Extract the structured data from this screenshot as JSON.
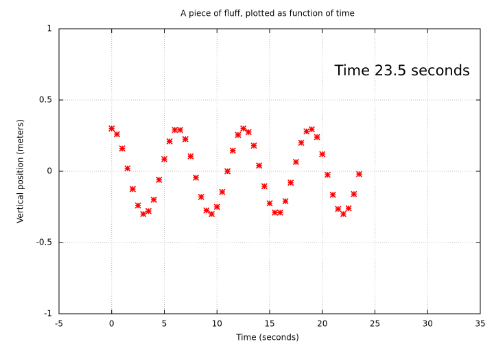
{
  "chart_data": {
    "type": "scatter",
    "title": "A piece of fluff, plotted as function of time",
    "xlabel": "Time (seconds)",
    "ylabel": "Vertical position (meters)",
    "annotation": "Time 23.5 seconds",
    "color": "#ff0000",
    "x": [
      0,
      0.5,
      1,
      1.5,
      2,
      2.5,
      3,
      3.5,
      4,
      4.5,
      5,
      5.5,
      6,
      6.5,
      7,
      7.5,
      8,
      8.5,
      9,
      9.5,
      10,
      10.5,
      11,
      11.5,
      12,
      12.5,
      13,
      13.5,
      14,
      14.5,
      15,
      15.5,
      16,
      16.5,
      17,
      17.5,
      18,
      18.5,
      19,
      19.5,
      20,
      20.5,
      21,
      21.5,
      22,
      22.5,
      23,
      23.5
    ],
    "values": [
      0.3,
      0.26,
      0.16,
      0.02,
      -0.125,
      -0.24,
      -0.3,
      -0.28,
      -0.2,
      -0.06,
      0.085,
      0.21,
      0.29,
      0.29,
      0.225,
      0.105,
      -0.045,
      -0.18,
      -0.275,
      -0.3,
      -0.25,
      -0.145,
      0.0,
      0.145,
      0.255,
      0.3,
      0.275,
      0.18,
      0.04,
      -0.105,
      -0.225,
      -0.29,
      -0.29,
      -0.21,
      -0.08,
      0.065,
      0.2,
      0.28,
      0.295,
      0.24,
      0.12,
      -0.025,
      -0.165,
      -0.265,
      -0.3,
      -0.26,
      -0.16,
      -0.02
    ],
    "xlim": [
      -5,
      35
    ],
    "xticks": [
      -5,
      0,
      5,
      10,
      15,
      20,
      25,
      30,
      35
    ],
    "ylim": [
      -1,
      1
    ],
    "yticks": [
      -1,
      -0.5,
      0,
      0.5,
      1
    ],
    "grid": true
  }
}
